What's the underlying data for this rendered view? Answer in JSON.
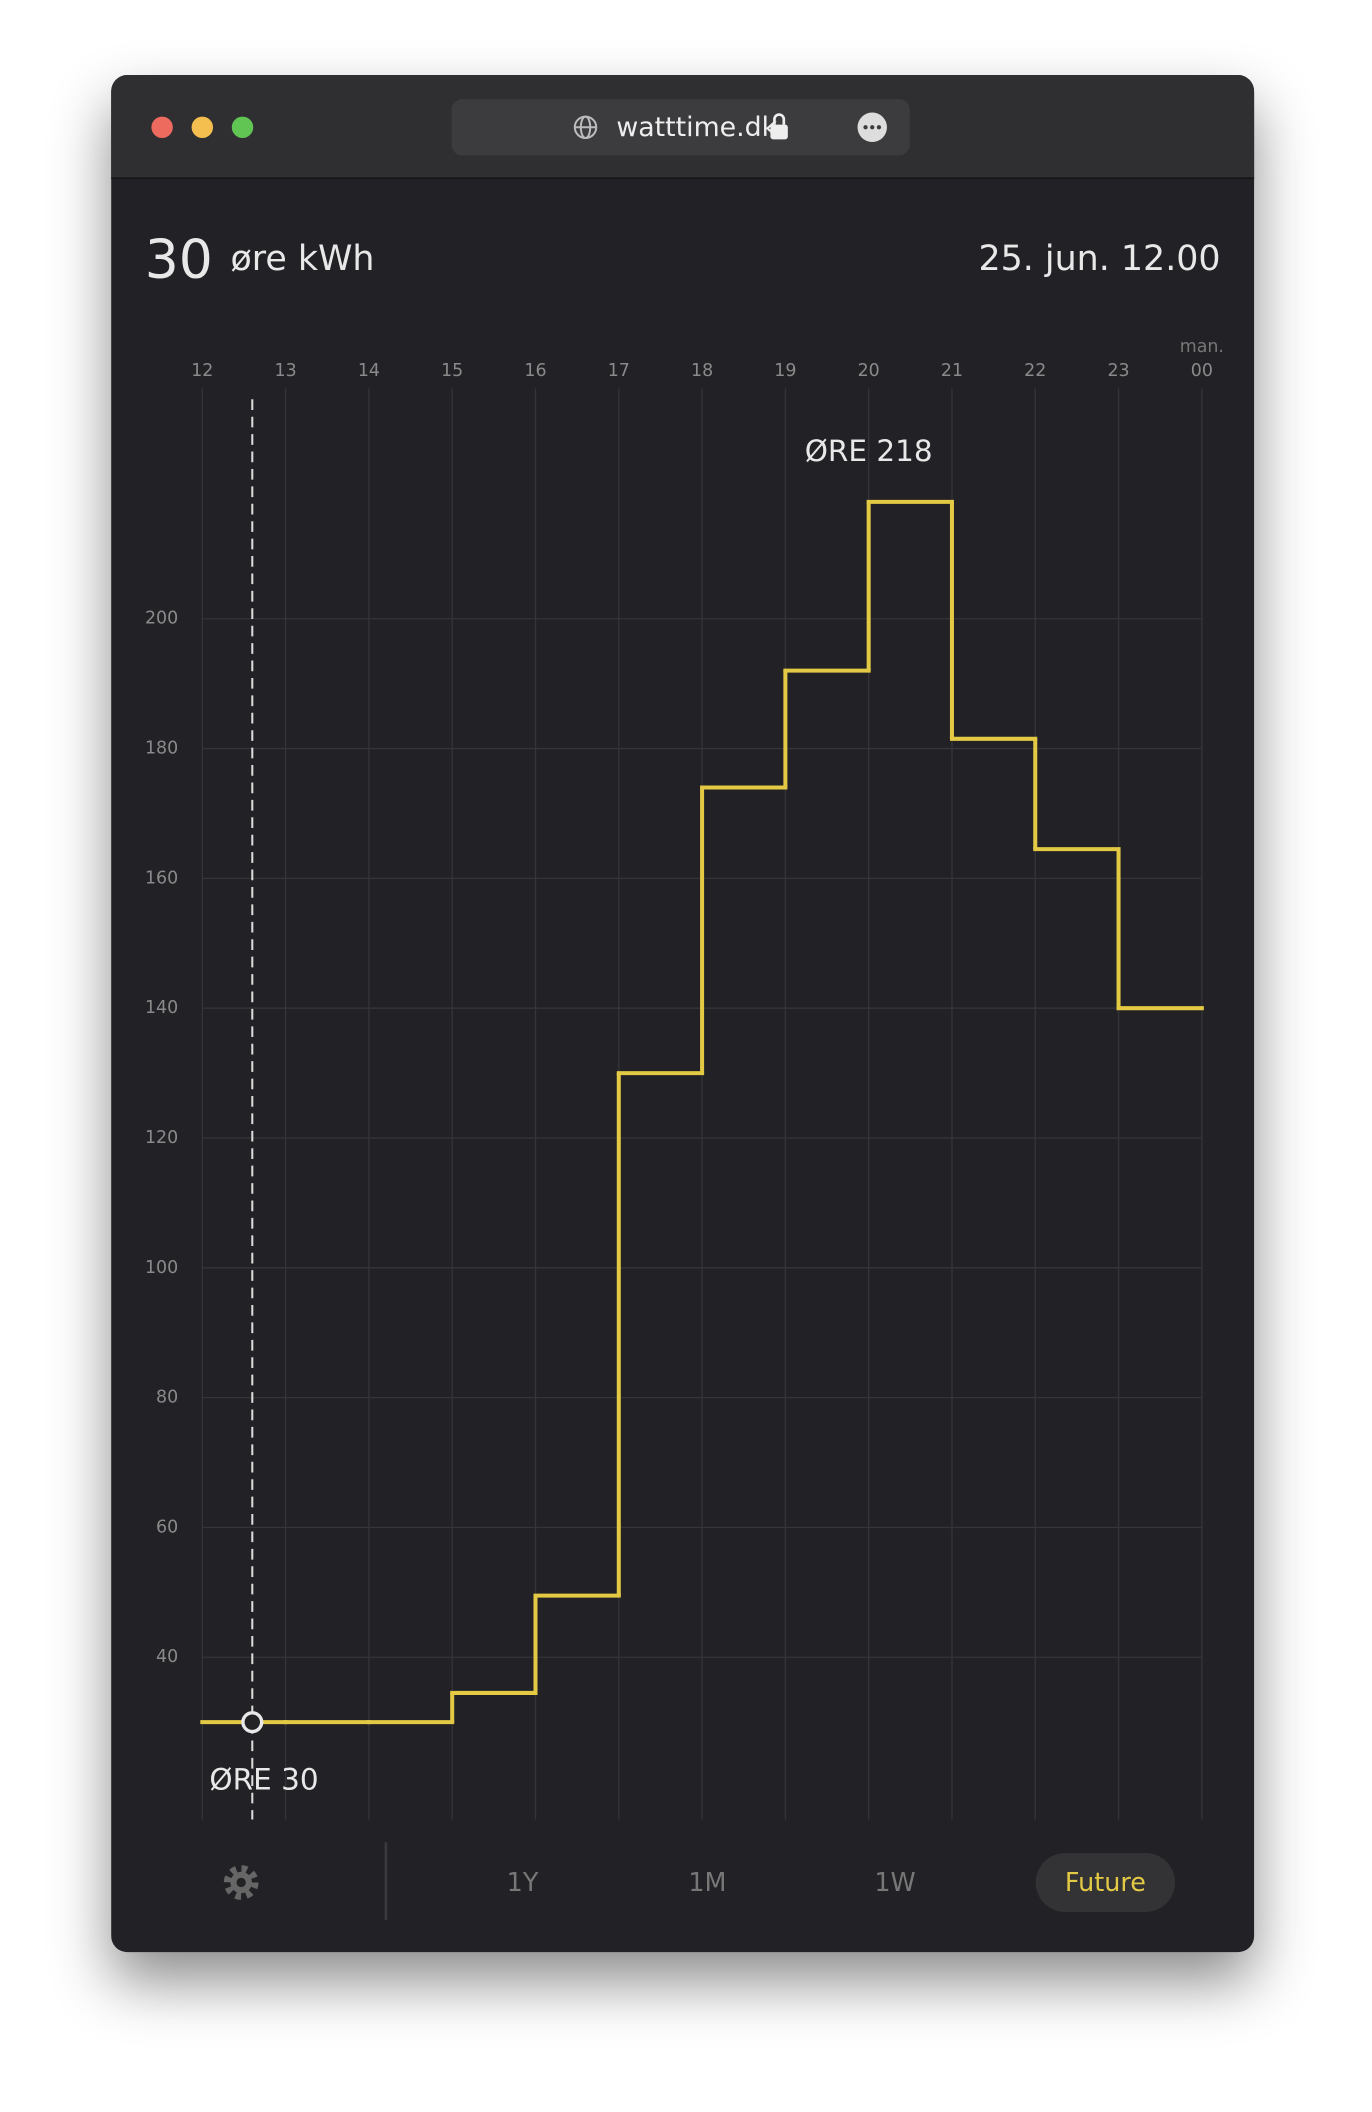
{
  "browser": {
    "url": "watttime.dk"
  },
  "header": {
    "price": "30",
    "unit": "øre kWh",
    "datetime": "25. jun. 12.00"
  },
  "chart_data": {
    "type": "step",
    "x": [
      12,
      13,
      14,
      15,
      16,
      17,
      18,
      19,
      20,
      21,
      22,
      23
    ],
    "values": [
      30,
      30,
      30,
      34.5,
      49.5,
      130,
      174,
      192,
      218,
      181.5,
      164.5,
      140
    ],
    "step_end": 24,
    "color": "#e3c944",
    "xlim": [
      12,
      24
    ],
    "xticks": [
      12,
      13,
      14,
      15,
      16,
      17,
      18,
      19,
      20,
      21,
      22,
      23,
      {
        "value": 24,
        "label": "00"
      }
    ],
    "day_label": "man.",
    "ylim": [
      15,
      233.4
    ],
    "yticks": [
      40,
      60,
      80,
      100,
      120,
      140,
      160,
      180,
      200
    ],
    "grid": true,
    "annotations": [
      {
        "x": 20,
        "value": 218,
        "label": "ØRE 218"
      }
    ],
    "cursor": {
      "x": 12.6,
      "value": 30,
      "label": "ØRE 30"
    }
  },
  "nav": {
    "buttons": [
      "1Y",
      "1M",
      "1W",
      "Future"
    ],
    "active": 3
  }
}
